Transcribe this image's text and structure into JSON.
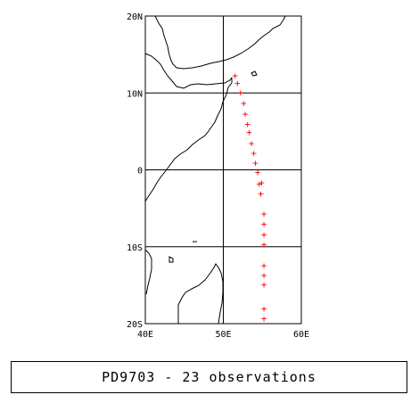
{
  "map": {
    "y_ticks": [
      "20N",
      "10N",
      "0",
      "10S",
      "20S"
    ],
    "x_ticks": [
      "40E",
      "50E",
      "60E"
    ],
    "lon_range": [
      40,
      60
    ],
    "lat_range": [
      -20,
      20
    ],
    "grid": true,
    "marker_color": "#ff0000",
    "marker_symbol": "+",
    "observations": [
      {
        "lon": 51.5,
        "lat": 12.3
      },
      {
        "lon": 51.8,
        "lat": 11.3
      },
      {
        "lon": 52.2,
        "lat": 10.1
      },
      {
        "lon": 52.6,
        "lat": 8.7
      },
      {
        "lon": 52.8,
        "lat": 7.3
      },
      {
        "lon": 53.1,
        "lat": 6.0
      },
      {
        "lon": 53.3,
        "lat": 4.9
      },
      {
        "lon": 53.6,
        "lat": 3.5
      },
      {
        "lon": 53.9,
        "lat": 2.2
      },
      {
        "lon": 54.1,
        "lat": 0.9
      },
      {
        "lon": 54.4,
        "lat": -0.3
      },
      {
        "lon": 54.6,
        "lat": -1.8
      },
      {
        "lon": 54.8,
        "lat": -3.1
      },
      {
        "lon": 55.2,
        "lat": -5.7
      },
      {
        "lon": 55.2,
        "lat": -7.0
      },
      {
        "lon": 55.2,
        "lat": -8.4
      },
      {
        "lon": 55.2,
        "lat": -9.7
      },
      {
        "lon": 55.2,
        "lat": -12.4
      },
      {
        "lon": 55.2,
        "lat": -13.7
      },
      {
        "lon": 55.2,
        "lat": -14.9
      },
      {
        "lon": 55.2,
        "lat": -18.0
      },
      {
        "lon": 55.2,
        "lat": -19.3
      },
      {
        "lon": 54.9,
        "lat": -1.6
      }
    ]
  },
  "caption": "PD9703 - 23 observations"
}
